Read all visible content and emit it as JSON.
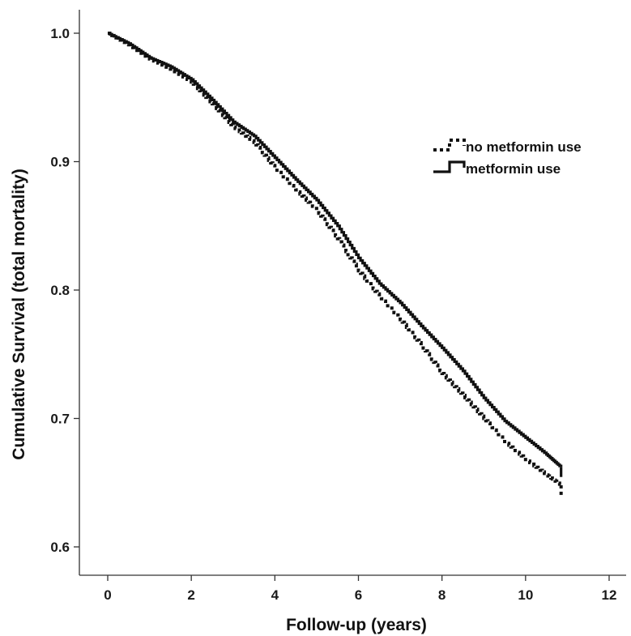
{
  "chart_data": {
    "type": "line",
    "step": true,
    "xlabel": "Follow-up (years)",
    "ylabel": "Cumulative Survival (total mortality)",
    "xlim": [
      0,
      12
    ],
    "ylim": [
      0.6,
      1.0
    ],
    "x_ticks": [
      "0",
      "2",
      "4",
      "6",
      "8",
      "10",
      "12"
    ],
    "y_ticks": [
      "0.6",
      "0.7",
      "0.8",
      "0.9",
      "1.0"
    ],
    "grid": false,
    "legend": {
      "position": "top-right"
    },
    "series": [
      {
        "name": "no metformin use",
        "style": "dotted",
        "color": "#111111",
        "x": [
          0,
          0.5,
          1,
          1.5,
          2,
          2.5,
          3,
          3.5,
          4,
          4.5,
          5,
          5.5,
          6,
          6.5,
          7,
          7.5,
          8,
          8.5,
          9,
          9.5,
          10,
          10.5,
          10.85
        ],
        "y": [
          1.0,
          0.991,
          0.98,
          0.972,
          0.962,
          0.945,
          0.927,
          0.915,
          0.895,
          0.878,
          0.862,
          0.84,
          0.815,
          0.795,
          0.777,
          0.757,
          0.735,
          0.718,
          0.7,
          0.682,
          0.668,
          0.656,
          0.648
        ]
      },
      {
        "name": "metformin use",
        "style": "solid",
        "color": "#111111",
        "x": [
          0,
          0.5,
          1,
          1.5,
          2,
          2.5,
          3,
          3.5,
          4,
          4.5,
          5,
          5.5,
          6,
          6.5,
          7,
          7.5,
          8,
          8.5,
          9,
          9.5,
          10,
          10.5,
          10.85
        ],
        "y": [
          1.0,
          0.992,
          0.981,
          0.974,
          0.964,
          0.948,
          0.931,
          0.92,
          0.903,
          0.886,
          0.87,
          0.85,
          0.825,
          0.805,
          0.79,
          0.772,
          0.755,
          0.737,
          0.716,
          0.698,
          0.685,
          0.672,
          0.662
        ]
      }
    ]
  }
}
